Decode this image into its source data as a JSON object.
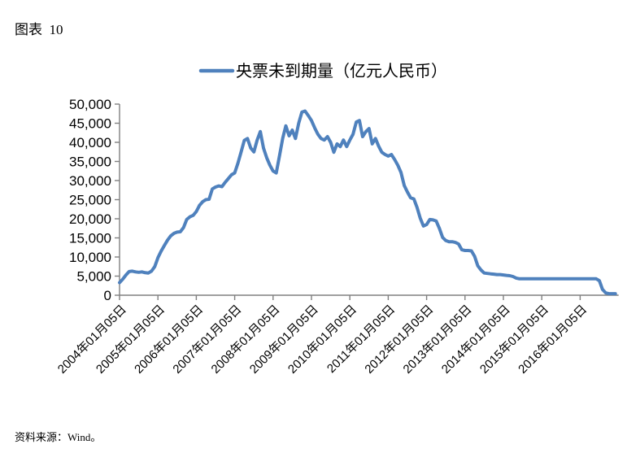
{
  "page": {
    "figure_label": "图表  10",
    "source_note": "资料来源：Wind。",
    "background": "#ffffff"
  },
  "chart_data": {
    "type": "line",
    "title": "",
    "legend": {
      "label": "央票未到期量（亿元人民币）",
      "position": "top"
    },
    "axis_color": "#808080",
    "tick_label_color": "#000000",
    "grid": false,
    "ylim": [
      0,
      50000
    ],
    "ytick_step": 5000,
    "ytick_labels": [
      "0",
      "5,000",
      "10,000",
      "15,000",
      "20,000",
      "25,000",
      "30,000",
      "35,000",
      "40,000",
      "45,000",
      "50,000"
    ],
    "xtick_labels": [
      "2004年01月05日",
      "2005年01月05日",
      "2006年01月05日",
      "2007年01月05日",
      "2008年01月05日",
      "2009年01月05日",
      "2010年01月05日",
      "2011年01月05日",
      "2012年01月05日",
      "2013年01月05日",
      "2014年01月05日",
      "2015年01月05日",
      "2016年01月05日"
    ],
    "x_unit": "monthly observations, 2004-01 to 2016-12 (values in 亿元人民币)",
    "series": [
      {
        "name": "央票未到期量（亿元人民币）",
        "color": "#4F81BD",
        "values_by_year": {
          "2004": [
            3300,
            4200,
            5300,
            6200,
            6300,
            6100,
            6000,
            6100,
            5900,
            5800,
            6300,
            7500
          ],
          "2005": [
            9800,
            11500,
            13000,
            14400,
            15500,
            16200,
            16500,
            16600,
            17700,
            19800,
            20500,
            20900
          ],
          "2006": [
            21900,
            23500,
            24500,
            25000,
            25100,
            27800,
            28300,
            28600,
            28400,
            29500,
            30500,
            31500
          ],
          "2007": [
            32000,
            34500,
            37500,
            40500,
            41000,
            38500,
            37500,
            40500,
            42800,
            38500,
            36000,
            34000
          ],
          "2008": [
            32500,
            32000,
            36500,
            41000,
            44300,
            41700,
            43200,
            41000,
            45000,
            47900,
            48200,
            47000
          ],
          "2009": [
            45700,
            43800,
            42100,
            41000,
            40600,
            41500,
            40000,
            37400,
            39600,
            38900,
            40600,
            38900
          ],
          "2010": [
            40600,
            42100,
            45300,
            45700,
            41500,
            42800,
            43600,
            39600,
            41000,
            39000,
            37400,
            36800
          ],
          "2011": [
            36400,
            36800,
            35500,
            34000,
            32100,
            28700,
            27000,
            25500,
            25200,
            23000,
            20200,
            18100
          ],
          "2012": [
            18500,
            19800,
            19700,
            19400,
            17500,
            15100,
            14300,
            14000,
            14000,
            13800,
            13400,
            11900
          ],
          "2013": [
            11700,
            11700,
            11600,
            10200,
            7700,
            6600,
            5800,
            5700,
            5600,
            5500,
            5400,
            5400
          ],
          "2014": [
            5300,
            5200,
            5100,
            4900,
            4500,
            4300,
            4300,
            4300,
            4300,
            4300,
            4300,
            4300
          ],
          "2015": [
            4300,
            4300,
            4300,
            4300,
            4300,
            4300,
            4300,
            4300,
            4300,
            4300,
            4300,
            4300
          ],
          "2016": [
            4300,
            4300,
            4300,
            4300,
            4300,
            4300,
            3800,
            1500,
            600,
            400,
            400,
            400
          ]
        }
      }
    ]
  }
}
